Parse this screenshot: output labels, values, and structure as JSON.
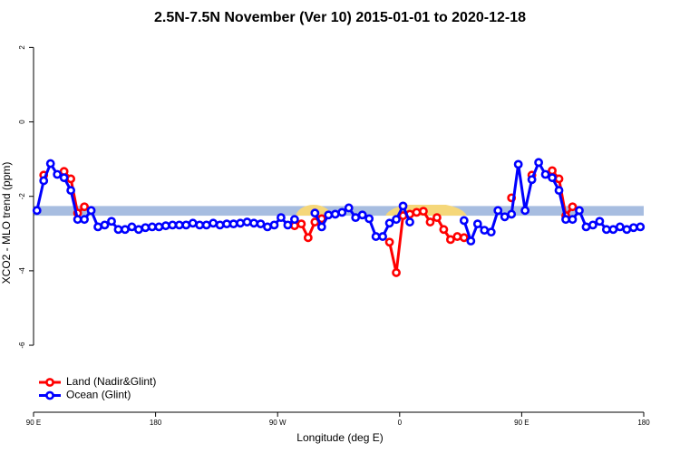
{
  "chart_data": {
    "type": "line",
    "title": "2.5N-7.5N November (Ver 10)   2015-01-01 to 2020-12-18",
    "x_label": "Longitude (deg E)",
    "y_label": "XCO2 - MLO trend (ppm)",
    "xlim": [
      90,
      540
    ],
    "xticks": [
      {
        "value": 90,
        "label": "90 E"
      },
      {
        "value": 180,
        "label": "180"
      },
      {
        "value": 270,
        "label": "90 W"
      },
      {
        "value": 360,
        "label": "0"
      },
      {
        "value": 450,
        "label": "90 E"
      },
      {
        "value": 540,
        "label": "180"
      }
    ],
    "ylim": [
      -7.8,
      2.35
    ],
    "yticks": [
      2,
      0,
      -2,
      -4,
      -6
    ],
    "reference_band": {
      "ylim": [
        -2.52,
        -2.26
      ],
      "color": "#a7bde0"
    },
    "legend": "bottom-left",
    "x": [
      92.5,
      97.5,
      102.5,
      107.5,
      112.5,
      117.5,
      122.5,
      127.5,
      132.5,
      137.5,
      142.5,
      147.5,
      152.5,
      157.5,
      162.5,
      167.5,
      172.5,
      177.5,
      182.5,
      187.5,
      192.5,
      197.5,
      202.5,
      207.5,
      212.5,
      217.5,
      222.5,
      227.5,
      232.5,
      237.5,
      242.5,
      247.5,
      252.5,
      257.5,
      262.5,
      267.5,
      272.5,
      277.5,
      282.5,
      287.5,
      292.5,
      297.5,
      302.5,
      307.5,
      312.5,
      317.5,
      322.5,
      327.5,
      332.5,
      337.5,
      342.5,
      347.5,
      352.5,
      357.5,
      362.5,
      367.5,
      372.5,
      377.5,
      382.5,
      387.5,
      392.5,
      397.5,
      402.5,
      407.5,
      412.5,
      417.5,
      422.5,
      427.5,
      432.5,
      437.5,
      442.5,
      447.5,
      452.5,
      457.5,
      462.5,
      467.5,
      472.5,
      477.5,
      482.5,
      487.5,
      492.5,
      497.5,
      502.5,
      507.5,
      512.5,
      517.5,
      522.5,
      527.5,
      532.5,
      537.5
    ],
    "series": [
      {
        "name": "Land (Nadir&Glint)",
        "color": "#ff0000",
        "values": [
          null,
          -1.43,
          null,
          null,
          -1.33,
          -1.53,
          -2.45,
          -2.28,
          null,
          null,
          null,
          null,
          null,
          null,
          null,
          null,
          null,
          null,
          null,
          null,
          null,
          null,
          null,
          null,
          null,
          null,
          null,
          null,
          null,
          null,
          null,
          null,
          null,
          null,
          null,
          null,
          null,
          null,
          -2.79,
          -2.74,
          -3.11,
          -2.69,
          -2.6,
          null,
          null,
          null,
          null,
          null,
          null,
          null,
          null,
          null,
          -3.23,
          -4.05,
          -2.52,
          -2.48,
          -2.43,
          -2.4,
          -2.69,
          -2.57,
          -2.89,
          -3.16,
          -3.08,
          -3.11,
          null,
          null,
          null,
          null,
          null,
          null,
          -2.04,
          null,
          null,
          -1.43,
          null,
          null,
          -1.31,
          -1.53,
          -2.52,
          -2.28,
          null,
          null,
          null,
          null,
          null,
          null,
          null,
          null,
          null,
          null
        ]
      },
      {
        "name": "Ocean (Glint)",
        "color": "#0000ff",
        "values": [
          -2.38,
          -1.58,
          -1.12,
          -1.41,
          -1.5,
          -1.84,
          -2.62,
          -2.62,
          -2.38,
          -2.82,
          -2.77,
          -2.67,
          -2.89,
          -2.89,
          -2.82,
          -2.89,
          -2.84,
          -2.82,
          -2.82,
          -2.79,
          -2.77,
          -2.77,
          -2.77,
          -2.72,
          -2.77,
          -2.77,
          -2.72,
          -2.77,
          -2.74,
          -2.74,
          -2.72,
          -2.69,
          -2.72,
          -2.74,
          -2.82,
          -2.77,
          -2.57,
          -2.77,
          -2.62,
          null,
          null,
          -2.45,
          -2.82,
          -2.5,
          -2.48,
          -2.43,
          -2.31,
          -2.57,
          -2.5,
          -2.6,
          -3.08,
          -3.08,
          -2.72,
          -2.62,
          -2.26,
          -2.69,
          null,
          null,
          null,
          null,
          null,
          null,
          null,
          -2.65,
          -3.2,
          -2.74,
          -2.91,
          -2.96,
          -2.38,
          -2.55,
          -2.48,
          -1.14,
          -2.38,
          -1.55,
          -1.09,
          -1.41,
          -1.5,
          -1.84,
          -2.62,
          -2.62,
          -2.38,
          -2.82,
          -2.77,
          -2.67,
          -2.89,
          -2.89,
          -2.82,
          -2.89,
          -2.84,
          -2.82
        ]
      }
    ]
  }
}
